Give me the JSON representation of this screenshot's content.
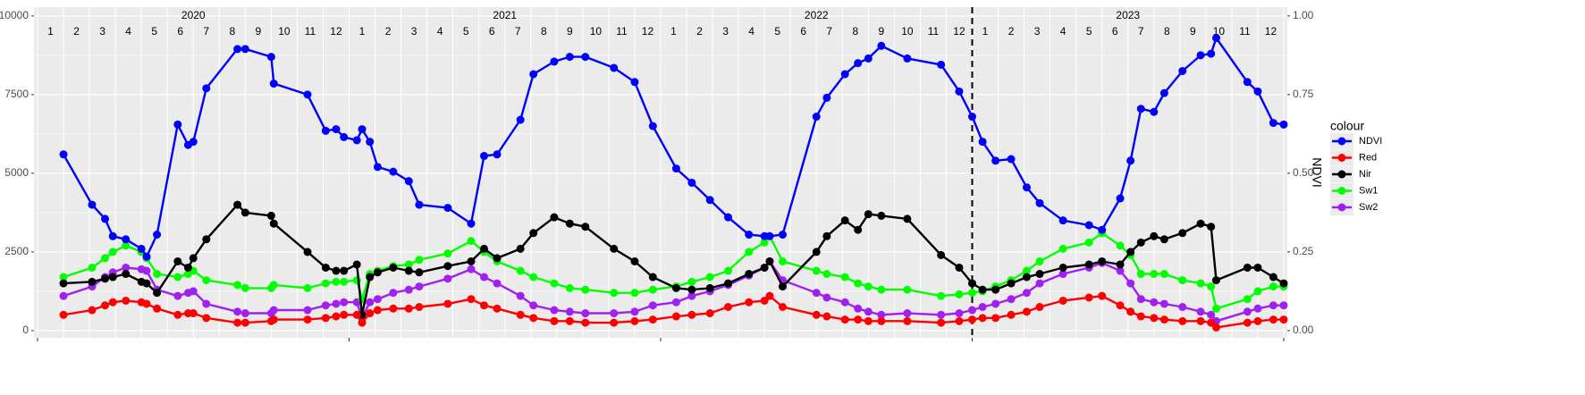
{
  "chart_data": {
    "type": "line",
    "years": [
      "2020",
      "2021",
      "2022",
      "2023"
    ],
    "months": [
      "1",
      "2",
      "3",
      "4",
      "5",
      "6",
      "7",
      "8",
      "9",
      "10",
      "11",
      "12"
    ],
    "x": [
      1.0,
      2.1,
      2.6,
      2.9,
      3.4,
      4.0,
      4.2,
      4.6,
      5.4,
      5.8,
      6.0,
      6.5,
      7.7,
      8.0,
      9.0,
      9.1,
      10.4,
      11.1,
      11.5,
      11.8,
      12.3,
      12.5,
      12.8,
      13.1,
      13.7,
      14.3,
      14.7,
      15.8,
      16.7,
      17.2,
      17.7,
      18.6,
      19.1,
      19.9,
      20.5,
      21.1,
      22.2,
      23.0,
      23.7,
      24.6,
      25.2,
      25.9,
      26.6,
      27.4,
      28.0,
      28.2,
      28.7,
      30.0,
      30.4,
      31.1,
      31.6,
      32.0,
      32.5,
      33.5,
      34.8,
      35.5,
      36.0,
      36.4,
      36.9,
      37.5,
      38.1,
      38.6,
      39.5,
      40.5,
      41.0,
      41.7,
      42.1,
      42.5,
      43.0,
      43.4,
      44.1,
      44.8,
      45.2,
      45.4,
      46.6,
      47.0,
      47.6,
      48.0
    ],
    "xlim": [
      0,
      48
    ],
    "xticks": [
      0,
      12,
      24,
      36,
      48
    ],
    "vline": 36,
    "ylim": [
      -230,
      10280
    ],
    "yticks": [
      0,
      2500,
      5000,
      7500,
      10000
    ],
    "y2lim": [
      -0.023,
      1.028
    ],
    "y2ticks": [
      {
        "value": 0,
        "label": "0.00"
      },
      {
        "value": 0.25,
        "label": "0.25"
      },
      {
        "value": 0.5,
        "label": "0.50"
      },
      {
        "value": 0.75,
        "label": "0.75"
      },
      {
        "value": 1,
        "label": "1.00"
      }
    ],
    "y2label": "NDVI",
    "legend_title": "colour",
    "grid": true,
    "series": [
      {
        "name": "NDVI",
        "color": "#0000ff",
        "axis": "y2",
        "values": [
          0.56,
          0.4,
          0.355,
          0.3,
          0.29,
          0.26,
          0.235,
          0.305,
          0.655,
          0.59,
          0.6,
          0.77,
          0.895,
          0.895,
          0.87,
          0.785,
          0.75,
          0.635,
          0.64,
          0.615,
          0.605,
          0.64,
          0.6,
          0.52,
          0.505,
          0.475,
          0.4,
          0.39,
          0.34,
          0.555,
          0.56,
          0.67,
          0.815,
          0.855,
          0.87,
          0.87,
          0.835,
          0.79,
          0.65,
          0.515,
          0.47,
          0.415,
          0.36,
          0.305,
          0.3,
          0.3,
          0.305,
          0.68,
          0.74,
          0.815,
          0.85,
          0.865,
          0.905,
          0.865,
          0.845,
          0.76,
          0.68,
          0.6,
          0.54,
          0.545,
          0.455,
          0.405,
          0.35,
          0.335,
          0.32,
          0.42,
          0.54,
          0.705,
          0.695,
          0.755,
          0.825,
          0.875,
          0.88,
          0.93,
          0.79,
          0.76,
          0.66,
          0.655
        ]
      },
      {
        "name": "Red",
        "color": "#ff0000",
        "values": [
          500,
          650,
          800,
          900,
          950,
          900,
          850,
          700,
          500,
          550,
          550,
          400,
          250,
          250,
          300,
          350,
          350,
          400,
          450,
          500,
          500,
          250,
          550,
          650,
          700,
          700,
          750,
          850,
          1000,
          800,
          700,
          500,
          400,
          300,
          300,
          250,
          250,
          300,
          350,
          450,
          500,
          550,
          750,
          900,
          950,
          1100,
          750,
          500,
          450,
          350,
          350,
          300,
          300,
          300,
          250,
          300,
          350,
          400,
          400,
          500,
          600,
          750,
          950,
          1050,
          1100,
          800,
          600,
          450,
          400,
          350,
          300,
          300,
          250,
          100,
          250,
          300,
          350,
          350
        ]
      },
      {
        "name": "Nir",
        "color": "#000000",
        "values": [
          1500,
          1550,
          1650,
          1700,
          1800,
          1550,
          1500,
          1200,
          2200,
          2000,
          2300,
          2900,
          4000,
          3750,
          3650,
          3400,
          2500,
          2000,
          1900,
          1900,
          2100,
          500,
          1700,
          1850,
          2000,
          1900,
          1850,
          2050,
          2200,
          2600,
          2300,
          2600,
          3100,
          3600,
          3400,
          3300,
          2600,
          2200,
          1700,
          1350,
          1300,
          1350,
          1500,
          1800,
          2000,
          2200,
          1400,
          2500,
          3000,
          3500,
          3200,
          3700,
          3650,
          3550,
          2400,
          2000,
          1500,
          1300,
          1300,
          1500,
          1700,
          1800,
          2000,
          2100,
          2200,
          2100,
          2500,
          2800,
          3000,
          2900,
          3100,
          3400,
          3300,
          1600,
          2000,
          2000,
          1700,
          1500
        ]
      },
      {
        "name": "Sw1",
        "color": "#00ff00",
        "values": [
          1700,
          2000,
          2300,
          2500,
          2700,
          2500,
          2300,
          1800,
          1700,
          1800,
          1900,
          1600,
          1450,
          1350,
          1350,
          1450,
          1350,
          1500,
          1550,
          1550,
          1600,
          1000,
          1800,
          1900,
          2050,
          2100,
          2250,
          2450,
          2850,
          2500,
          2200,
          1900,
          1700,
          1500,
          1350,
          1300,
          1200,
          1200,
          1300,
          1400,
          1550,
          1700,
          1900,
          2500,
          2800,
          3000,
          2200,
          1900,
          1800,
          1700,
          1500,
          1400,
          1300,
          1300,
          1100,
          1150,
          1200,
          1250,
          1400,
          1600,
          1900,
          2200,
          2600,
          2800,
          3100,
          2700,
          2400,
          1800,
          1800,
          1800,
          1600,
          1500,
          1400,
          700,
          1000,
          1250,
          1400,
          1400
        ]
      },
      {
        "name": "Sw2",
        "color": "#a020f0",
        "values": [
          1100,
          1400,
          1700,
          1850,
          2000,
          1950,
          1900,
          1300,
          1100,
          1200,
          1250,
          850,
          600,
          550,
          550,
          650,
          650,
          800,
          850,
          900,
          900,
          400,
          900,
          1000,
          1200,
          1300,
          1400,
          1650,
          1950,
          1700,
          1500,
          1100,
          800,
          650,
          600,
          550,
          550,
          600,
          800,
          900,
          1100,
          1250,
          1450,
          1750,
          2000,
          2200,
          1600,
          1200,
          1050,
          900,
          700,
          600,
          500,
          550,
          500,
          550,
          650,
          750,
          850,
          1000,
          1200,
          1500,
          1800,
          2000,
          2150,
          1900,
          1500,
          1000,
          900,
          850,
          750,
          600,
          500,
          300,
          600,
          700,
          800,
          800
        ]
      }
    ]
  }
}
